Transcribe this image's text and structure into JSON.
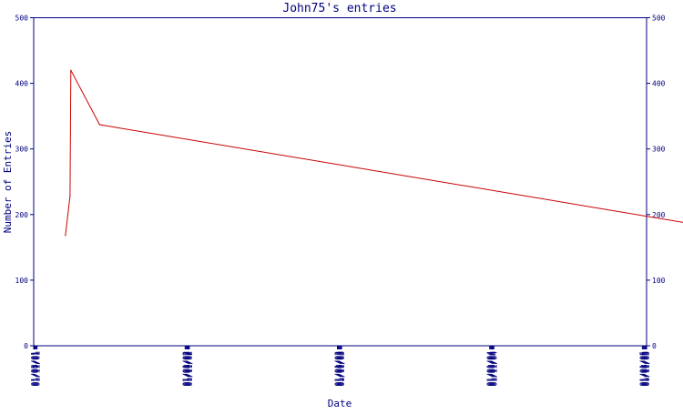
{
  "chart_data": {
    "type": "line",
    "title": "John75's entries",
    "xlabel": "Date",
    "ylabel": "Number of Entries",
    "ylim": [
      0,
      500
    ],
    "y_ticks": [
      "0",
      "100",
      "200",
      "300",
      "400",
      "500"
    ],
    "x_ticks": [
      "01/03/01",
      "01/05/01",
      "01/07/01",
      "01/09/01",
      "01/11/01",
      "01/01/02",
      "01/03/02",
      "01/05/02",
      "01/07/02",
      "01/09/02",
      "01/11/02",
      "01/01/03",
      "01/03/03",
      "01/05/03",
      "01/07/03",
      "01/09/03",
      "01/11/03",
      "01/01/04",
      "01/03/04",
      "01/05/04",
      "01/07/04",
      "01/09/04",
      "01/11/04",
      "01/01/05",
      "01/03/05",
      "01/05/05",
      "01/07/05",
      "01/09/05",
      "01/11/05"
    ],
    "secondary_y_axis": true,
    "grid": false,
    "series": [
      {
        "color": "#cc0000",
        "points": [
          {
            "x": "2001-03-20",
            "y": 168
          },
          {
            "x": "2001-03-31",
            "y": 228
          },
          {
            "x": "2001-04-02",
            "y": 420
          },
          {
            "x": "2001-06-10",
            "y": 337
          },
          {
            "x": "2005-10-15",
            "y": 168
          }
        ]
      }
    ]
  },
  "colors": {
    "axis": "#00007f",
    "text": "#00007f",
    "line": "#cc0000"
  }
}
